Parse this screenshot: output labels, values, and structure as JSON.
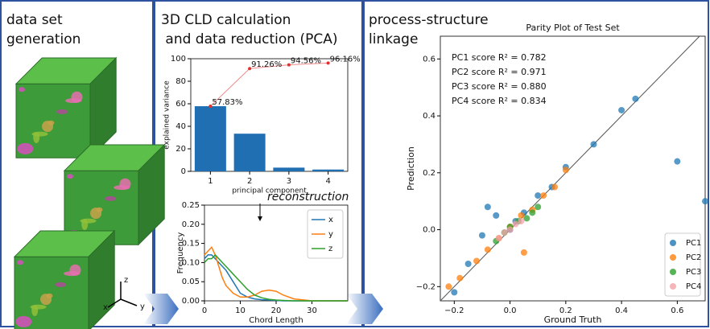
{
  "panels": [
    {
      "title_lines": [
        "data set",
        "generation"
      ]
    },
    {
      "title_lines": [
        "3D CLD calculation",
        " and data reduction (PCA)"
      ]
    },
    {
      "title_lines": [
        "process-structure",
        "linkage"
      ]
    }
  ],
  "axes_icon_labels": [
    "x",
    "y",
    "z"
  ],
  "chart_data": [
    {
      "type": "bar",
      "categories": [
        "1",
        "2",
        "3",
        "4"
      ],
      "series": [
        {
          "type": "bar",
          "color": "#1f6fb2",
          "values": [
            57.83,
            33.43,
            3.3,
            1.6
          ]
        },
        {
          "type": "line",
          "color": "#f08a8a",
          "values": [
            57.83,
            91.26,
            94.56,
            96.16
          ],
          "value_labels": [
            "57.83%",
            "91.26%",
            "94.56%",
            "96.16%"
          ]
        }
      ],
      "xlabel": "principal component",
      "ylabel": "explained variance",
      "ylim": [
        0,
        100
      ],
      "yticks": [
        0,
        20,
        40,
        60,
        80,
        100
      ]
    },
    {
      "type": "line",
      "xlabel": "Chord Length",
      "ylabel": "Frequency",
      "annotations": [
        "reconstruction"
      ],
      "x": [
        0,
        1,
        2,
        3,
        4,
        5,
        6,
        8,
        10,
        12,
        14,
        16,
        18,
        20,
        22,
        25,
        30,
        40
      ],
      "series": [
        {
          "name": "x",
          "color": "#1f77b4",
          "values": [
            0.11,
            0.12,
            0.12,
            0.11,
            0.1,
            0.09,
            0.08,
            0.05,
            0.02,
            0.01,
            0.005,
            0.003,
            0.002,
            0.001,
            0,
            0,
            0,
            0
          ]
        },
        {
          "name": "y",
          "color": "#ff7f0e",
          "values": [
            0.12,
            0.13,
            0.14,
            0.12,
            0.09,
            0.06,
            0.04,
            0.02,
            0.01,
            0.01,
            0.015,
            0.025,
            0.028,
            0.025,
            0.015,
            0.005,
            0,
            0
          ]
        },
        {
          "name": "z",
          "color": "#2ca02c",
          "values": [
            0.1,
            0.11,
            0.11,
            0.12,
            0.11,
            0.1,
            0.09,
            0.07,
            0.05,
            0.03,
            0.015,
            0.008,
            0.004,
            0.002,
            0.001,
            0,
            0,
            0
          ]
        }
      ],
      "xlim": [
        0,
        40
      ],
      "xticks": [
        0,
        10,
        20,
        30
      ],
      "ylim": [
        0,
        0.25
      ],
      "yticks": [
        {
          "value": 0,
          "label": "0.00"
        },
        {
          "value": 0.05,
          "label": "0.05"
        },
        {
          "value": 0.1,
          "label": "0.10"
        },
        {
          "value": 0.15,
          "label": "0.15"
        },
        {
          "value": 0.2,
          "label": "0.20"
        },
        {
          "value": 0.25,
          "label": "0.25"
        }
      ],
      "legend": "upper right"
    },
    {
      "type": "scatter",
      "title": "Parity Plot of Test Set",
      "xlabel": "Ground Truth",
      "ylabel": "Prediction",
      "annotations": [
        "PC1 score R² = 0.782",
        "PC2 score R² = 0.971",
        "PC3 score R² = 0.880",
        "PC4 score R² = 0.834"
      ],
      "xlim": [
        -0.25,
        0.7
      ],
      "ylim": [
        -0.25,
        0.68
      ],
      "xticks": [
        {
          "value": -0.2,
          "label": "−0.2"
        },
        {
          "value": 0,
          "label": "0.0"
        },
        {
          "value": 0.2,
          "label": "0.2"
        },
        {
          "value": 0.4,
          "label": "0.4"
        },
        {
          "value": 0.6,
          "label": "0.6"
        }
      ],
      "yticks": [
        {
          "value": -0.2,
          "label": "−0.2"
        },
        {
          "value": 0,
          "label": "0.0"
        },
        {
          "value": 0.2,
          "label": "0.2"
        },
        {
          "value": 0.4,
          "label": "0.4"
        },
        {
          "value": 0.6,
          "label": "0.6"
        }
      ],
      "legend": "lower right",
      "series": [
        {
          "name": "PC1",
          "color": "#1f77b4",
          "x": [
            -0.2,
            -0.15,
            -0.1,
            -0.05,
            0,
            0.05,
            0.1,
            0.15,
            0.2,
            0.3,
            0.4,
            0.45,
            0.6,
            0.7,
            -0.08,
            0.02
          ],
          "values": [
            -0.22,
            -0.12,
            -0.02,
            0.05,
            0.0,
            0.06,
            0.12,
            0.15,
            0.22,
            0.3,
            0.42,
            0.46,
            0.24,
            0.1,
            0.08,
            0.03
          ]
        },
        {
          "name": "PC2",
          "color": "#ff7f0e",
          "x": [
            -0.22,
            -0.18,
            -0.12,
            -0.08,
            -0.04,
            0,
            0.04,
            0.08,
            0.12,
            0.16,
            0.2,
            0.05
          ],
          "values": [
            -0.2,
            -0.17,
            -0.11,
            -0.07,
            -0.03,
            0.01,
            0.05,
            0.07,
            0.12,
            0.15,
            0.21,
            -0.08
          ]
        },
        {
          "name": "PC3",
          "color": "#2ca02c",
          "x": [
            -0.05,
            -0.02,
            0,
            0.03,
            0.06,
            0.08,
            0.1
          ],
          "values": [
            -0.04,
            -0.01,
            0.01,
            0.03,
            0.04,
            0.06,
            0.08
          ]
        },
        {
          "name": "PC4",
          "color": "#f4a3a8",
          "x": [
            -0.04,
            -0.02,
            0,
            0.02,
            0.04
          ],
          "values": [
            -0.03,
            -0.01,
            0.0,
            0.02,
            0.03
          ]
        }
      ]
    }
  ]
}
